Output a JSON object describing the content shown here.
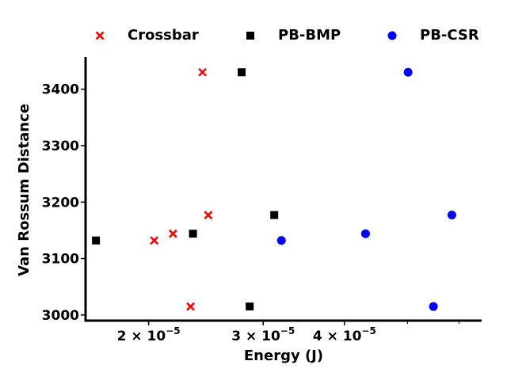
{
  "chart_data": {
    "type": "scatter",
    "title": "",
    "xlabel": "Energy (J)",
    "ylabel": "Van Rossum Distance",
    "x_scale": "log",
    "xlim": [
      1.6e-05,
      6.5e-05
    ],
    "ylim": [
      2990,
      3457
    ],
    "x_ticks": [
      {
        "value": 2e-05,
        "base": "2 × 10",
        "exp": "−5"
      },
      {
        "value": 3e-05,
        "base": "3 × 10",
        "exp": "−5"
      },
      {
        "value": 4e-05,
        "base": "4 × 10",
        "exp": "−5"
      }
    ],
    "x_minor_ticks": [
      5e-05,
      6e-05
    ],
    "y_ticks": [
      3000,
      3100,
      3200,
      3300,
      3400
    ],
    "grid": false,
    "legend_position": "top",
    "series": [
      {
        "name": "Crossbar",
        "marker": "x",
        "color": "#ff0000",
        "x": [
          2.04e-05,
          2.18e-05,
          2.32e-05,
          2.42e-05,
          2.47e-05
        ],
        "y": [
          3132,
          3144,
          3015,
          3430,
          3177
        ]
      },
      {
        "name": "PB-BMP",
        "marker": "square",
        "color": "#000000",
        "x": [
          1.66e-05,
          2.34e-05,
          2.78e-05,
          2.86e-05,
          3.12e-05
        ],
        "y": [
          3132,
          3144,
          3430,
          3015,
          3177
        ]
      },
      {
        "name": "PB-CSR",
        "marker": "circle",
        "color": "#0000ff",
        "x": [
          3.2e-05,
          4.31e-05,
          5.01e-05,
          5.48e-05,
          5.85e-05
        ],
        "y": [
          3132,
          3144,
          3430,
          3015,
          3177
        ]
      }
    ]
  }
}
